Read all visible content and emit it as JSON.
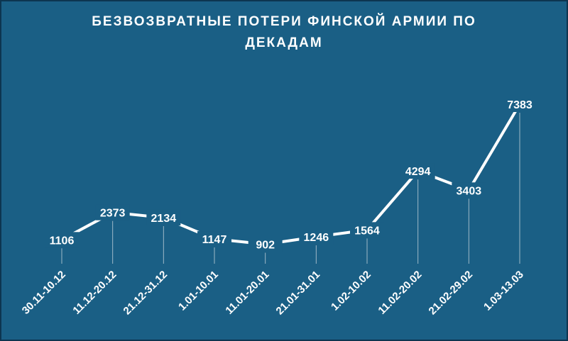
{
  "chart_data": {
    "type": "line",
    "title": "БЕЗВОЗВРАТНЫЕ ПОТЕРИ ФИНСКОЙ АРМИИ ПО ДЕКАДАМ",
    "categories": [
      "30.11-10.12",
      "11.12-20.12",
      "21.12-31.12",
      "1.01-10.01",
      "11.01-20.01",
      "21.01-31.01",
      "1.02-10.02",
      "11.02-20.02",
      "21.02-29.02",
      "1.03-13.03"
    ],
    "values": [
      1106,
      2373,
      2134,
      1147,
      902,
      1246,
      1564,
      4294,
      3403,
      7383
    ],
    "color": "#ffffff",
    "background": "#1a5f85"
  }
}
